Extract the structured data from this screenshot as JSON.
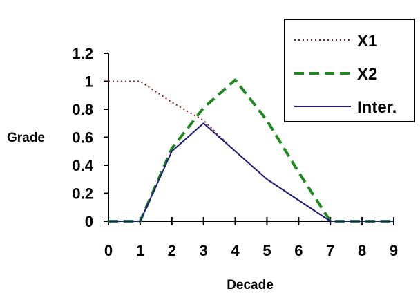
{
  "chart_data": {
    "type": "line",
    "title": "",
    "xlabel": "Decade",
    "ylabel": "Grade",
    "xlim": [
      0,
      9
    ],
    "ylim": [
      0,
      1.2
    ],
    "x_ticks": [
      "0",
      "1",
      "2",
      "3",
      "4",
      "5",
      "6",
      "7",
      "8",
      "9"
    ],
    "y_ticks": [
      "0",
      "0.2",
      "0.4",
      "0.6",
      "0.8",
      "1",
      "1.2"
    ],
    "grid": false,
    "legend_position": "top-right",
    "series": [
      {
        "name": "X1",
        "style": "dotted",
        "color": "#8b1a1a",
        "x": [
          0,
          1,
          2,
          3,
          4,
          5,
          6,
          7,
          8,
          9
        ],
        "y": [
          1.0,
          1.0,
          0.85,
          0.72,
          0.5,
          0.3,
          0.15,
          0.0,
          0.0,
          0.0
        ]
      },
      {
        "name": "X2",
        "style": "dashed",
        "color": "#1f8a1f",
        "x": [
          0,
          1,
          2,
          3,
          4,
          5,
          6,
          7,
          8,
          9
        ],
        "y": [
          0.0,
          0.0,
          0.52,
          0.81,
          1.01,
          0.72,
          0.35,
          0.0,
          0.0,
          0.0
        ]
      },
      {
        "name": "Inter.",
        "style": "solid",
        "color": "#1c1c7a",
        "x": [
          0,
          1,
          2,
          3,
          4,
          5,
          6,
          7,
          8,
          9
        ],
        "y": [
          0.0,
          0.0,
          0.5,
          0.7,
          0.5,
          0.3,
          0.15,
          0.0,
          0.0,
          0.0
        ]
      }
    ]
  }
}
